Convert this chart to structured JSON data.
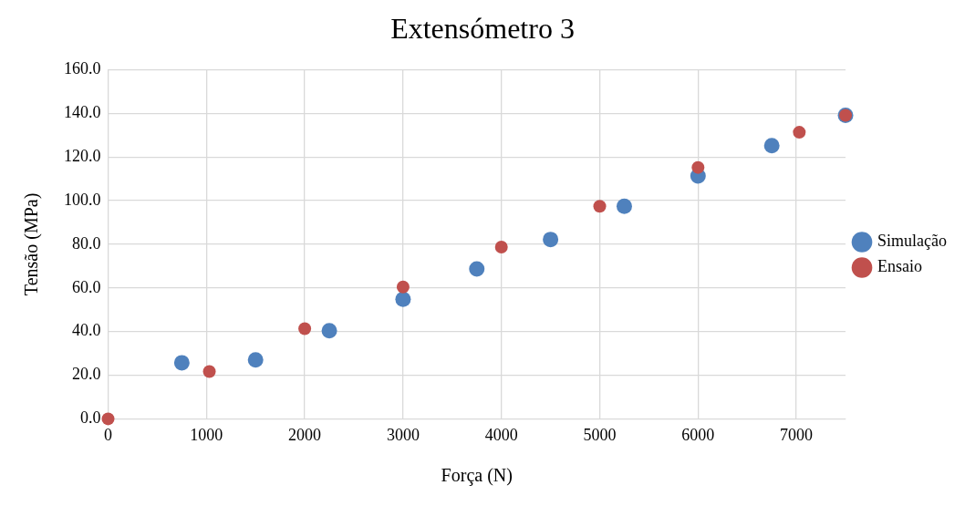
{
  "chart_data": {
    "type": "scatter",
    "title": "Extensómetro 3",
    "xlabel": "Força (N)",
    "ylabel": "Tensão (MPa)",
    "xlim": [
      0,
      7500
    ],
    "xticks": [
      0,
      1000,
      2000,
      3000,
      4000,
      5000,
      6000,
      7000
    ],
    "ylim": [
      0,
      160
    ],
    "yticks": [
      {
        "value": 0,
        "label": "0.0"
      },
      {
        "value": 20,
        "label": "20.0"
      },
      {
        "value": 40,
        "label": "40.0"
      },
      {
        "value": 60,
        "label": "60.0"
      },
      {
        "value": 80,
        "label": "80.0"
      },
      {
        "value": 100,
        "label": "100.0"
      },
      {
        "value": 120,
        "label": "120.0"
      },
      {
        "value": 140,
        "label": "140.0"
      },
      {
        "value": 160,
        "label": "160.0"
      }
    ],
    "grid": true,
    "legend": "right",
    "marker": "circle",
    "series": [
      {
        "name": "Simulação",
        "color": "#4f81bd",
        "x": [
          750,
          1500,
          2250,
          3000,
          3750,
          4500,
          5250,
          6000,
          6750,
          7500
        ],
        "values": [
          25.7,
          27.0,
          40.4,
          54.8,
          68.7,
          82.2,
          97.4,
          111.3,
          125.2,
          139.1
        ]
      },
      {
        "name": "Ensaio",
        "color": "#c0504d",
        "x": [
          0,
          1030,
          2000,
          3000,
          4000,
          5000,
          6000,
          7030,
          7500
        ],
        "values": [
          0,
          21.7,
          41.3,
          60.4,
          78.7,
          97.4,
          115.2,
          131.3,
          139.1
        ]
      }
    ]
  }
}
